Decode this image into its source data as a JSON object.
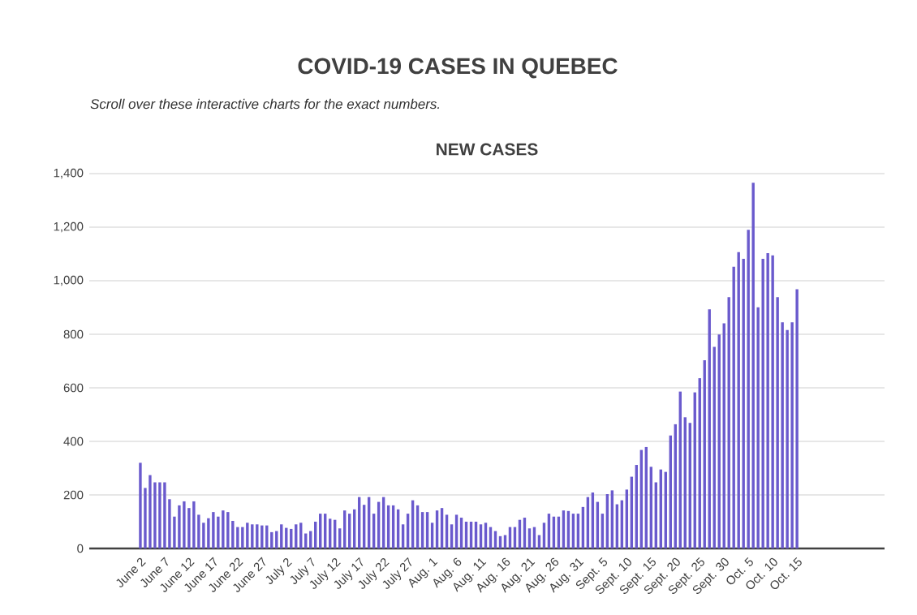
{
  "chart_data": {
    "type": "bar",
    "title": "COVID-19 CASES IN QUEBEC",
    "subtitle": "*Scroll over these interactive charts for the exact numbers.*",
    "annotations": [
      "NEW CASES"
    ],
    "categories": [
      "June 2",
      null,
      null,
      null,
      null,
      "June 7",
      null,
      null,
      null,
      null,
      "June 12",
      null,
      null,
      null,
      null,
      "June 17",
      null,
      null,
      null,
      null,
      "June 22",
      null,
      null,
      null,
      null,
      "June 27",
      null,
      null,
      null,
      null,
      "July 2",
      null,
      null,
      null,
      null,
      "July 7",
      null,
      null,
      null,
      null,
      "July 12",
      null,
      null,
      null,
      null,
      "July 17",
      null,
      null,
      null,
      null,
      "July 22",
      null,
      null,
      null,
      null,
      "July 27",
      null,
      null,
      null,
      null,
      "Aug. 1",
      null,
      null,
      null,
      null,
      "Aug. 6",
      null,
      null,
      null,
      null,
      "Aug. 11",
      null,
      null,
      null,
      null,
      "Aug. 16",
      null,
      null,
      null,
      null,
      "Aug. 21",
      null,
      null,
      null,
      null,
      "Aug. 26",
      null,
      null,
      null,
      null,
      "Aug. 31",
      null,
      null,
      null,
      null,
      "Sept. 5",
      null,
      null,
      null,
      null,
      "Sept. 10",
      null,
      null,
      null,
      null,
      "Sept. 15",
      null,
      null,
      null,
      null,
      "Sept. 20",
      null,
      null,
      null,
      null,
      "Sept. 25",
      null,
      null,
      null,
      null,
      "Sept. 30",
      null,
      null,
      null,
      null,
      "Oct. 5",
      null,
      null,
      null,
      null,
      "Oct. 10",
      null,
      null,
      null,
      null,
      "Oct. 15"
    ],
    "values": [
      320,
      226,
      274,
      247,
      247,
      247,
      184,
      119,
      161,
      176,
      151,
      176,
      126,
      96,
      113,
      136,
      119,
      142,
      136,
      103,
      80,
      80,
      96,
      90,
      90,
      86,
      86,
      61,
      65,
      90,
      77,
      73,
      90,
      96,
      56,
      65,
      100,
      130,
      130,
      111,
      107,
      75,
      142,
      130,
      146,
      192,
      163,
      192,
      130,
      174,
      192,
      161,
      161,
      146,
      90,
      130,
      180,
      161,
      136,
      136,
      96,
      142,
      151,
      126,
      90,
      126,
      115,
      100,
      100,
      100,
      90,
      96,
      80,
      65,
      46,
      50,
      80,
      80,
      107,
      115,
      75,
      80,
      50,
      96,
      130,
      119,
      119,
      142,
      140,
      130,
      130,
      155,
      192,
      209,
      174,
      130,
      203,
      217,
      165,
      180,
      220,
      268,
      312,
      368,
      379,
      305,
      247,
      295,
      286,
      422,
      464,
      586,
      490,
      469,
      583,
      636,
      703,
      893,
      753,
      799,
      841,
      939,
      1052,
      1107,
      1082,
      1190,
      1366,
      901,
      1082,
      1103,
      1095,
      939,
      845,
      816,
      845,
      968
    ],
    "color": "#6a5acd",
    "ylim": [
      0,
      1400
    ],
    "yticks": [
      0,
      200,
      400,
      600,
      800,
      {
        "value": 1000,
        "label": "1,000"
      },
      {
        "value": 1200,
        "label": "1,200"
      },
      {
        "value": 1400,
        "label": "1,400"
      }
    ],
    "grid": "y"
  }
}
